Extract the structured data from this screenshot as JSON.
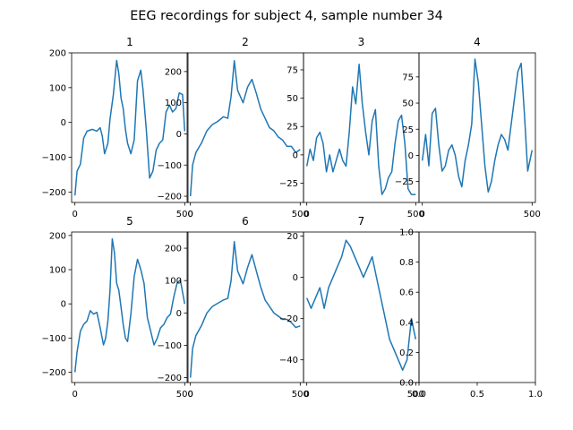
{
  "figure": {
    "title": "EEG recordings for subject 4, sample number 34"
  },
  "chart_data": [
    {
      "type": "line",
      "title": "1",
      "xlim": [
        -15,
        515
      ],
      "ylim": [
        -230,
        200
      ],
      "xticks": [
        0,
        500
      ],
      "yticks": [
        -200,
        -100,
        0,
        100,
        200
      ],
      "series": [
        {
          "x": [
            0,
            10,
            25,
            40,
            55,
            80,
            100,
            115,
            125,
            135,
            150,
            160,
            175,
            190,
            200,
            210,
            220,
            230,
            240,
            255,
            270,
            285,
            300,
            310,
            325,
            340,
            355,
            370,
            385,
            400,
            415,
            430,
            445,
            460,
            475,
            490,
            500
          ],
          "y": [
            -210,
            -140,
            -120,
            -45,
            -25,
            -20,
            -25,
            -15,
            -40,
            -90,
            -60,
            10,
            80,
            178,
            140,
            70,
            40,
            -20,
            -60,
            -90,
            -50,
            120,
            150,
            95,
            -20,
            -160,
            -140,
            -80,
            -60,
            -50,
            30,
            50,
            30,
            40,
            85,
            80,
            -25
          ]
        }
      ]
    },
    {
      "type": "line",
      "title": "2",
      "xlim": [
        -15,
        515
      ],
      "ylim": [
        -220,
        260
      ],
      "xticks": [
        0,
        500
      ],
      "yticks": [
        -200,
        -100,
        0,
        100,
        200
      ],
      "series": [
        {
          "x": [
            0,
            10,
            25,
            50,
            75,
            100,
            125,
            150,
            170,
            185,
            200,
            215,
            240,
            260,
            280,
            300,
            320,
            340,
            360,
            380,
            400,
            420,
            440,
            460,
            480,
            500
          ],
          "y": [
            -200,
            -100,
            -60,
            -30,
            10,
            30,
            40,
            55,
            50,
            120,
            235,
            140,
            100,
            150,
            175,
            130,
            80,
            50,
            20,
            10,
            -10,
            -20,
            -40,
            -40,
            -60,
            -50
          ]
        }
      ]
    },
    {
      "type": "line",
      "title": "3",
      "xlim": [
        -15,
        515
      ],
      "ylim": [
        -42,
        90
      ],
      "xticks": [
        0,
        500
      ],
      "yticks": [
        -25,
        0,
        25,
        50,
        75
      ],
      "series": [
        {
          "x": [
            0,
            15,
            30,
            45,
            60,
            75,
            90,
            105,
            120,
            135,
            150,
            165,
            180,
            195,
            210,
            225,
            240,
            255,
            270,
            285,
            300,
            315,
            330,
            345,
            360,
            375,
            390,
            405,
            420,
            435,
            450,
            465,
            480,
            500
          ],
          "y": [
            -10,
            5,
            -5,
            15,
            20,
            10,
            -15,
            0,
            -15,
            -5,
            5,
            -5,
            -10,
            20,
            60,
            45,
            80,
            45,
            20,
            0,
            30,
            40,
            -10,
            -35,
            -30,
            -20,
            -15,
            10,
            30,
            35,
            10,
            -30,
            -35,
            -35
          ]
        }
      ]
    },
    {
      "type": "line",
      "title": "4",
      "xlim": [
        -15,
        515
      ],
      "ylim": [
        -45,
        98
      ],
      "xticks": [
        0,
        500
      ],
      "yticks": [
        -25,
        0,
        25,
        50,
        75
      ],
      "series": [
        {
          "x": [
            0,
            15,
            30,
            45,
            60,
            75,
            90,
            105,
            120,
            135,
            150,
            165,
            180,
            195,
            210,
            225,
            240,
            255,
            270,
            285,
            300,
            315,
            330,
            345,
            360,
            375,
            390,
            405,
            420,
            435,
            450,
            465,
            480,
            500
          ],
          "y": [
            -5,
            20,
            -10,
            40,
            45,
            10,
            -15,
            -10,
            5,
            10,
            0,
            -20,
            -30,
            -5,
            10,
            30,
            92,
            70,
            30,
            -10,
            -35,
            -25,
            -5,
            10,
            20,
            15,
            5,
            30,
            55,
            80,
            88,
            40,
            -15,
            5
          ]
        }
      ]
    },
    {
      "type": "line",
      "title": "5",
      "xlim": [
        -15,
        515
      ],
      "ylim": [
        -230,
        210
      ],
      "xticks": [
        0,
        500
      ],
      "yticks": [
        -200,
        -100,
        0,
        100,
        200
      ],
      "series": [
        {
          "x": [
            0,
            10,
            25,
            40,
            55,
            70,
            85,
            100,
            115,
            130,
            140,
            150,
            160,
            170,
            180,
            190,
            200,
            210,
            220,
            230,
            240,
            255,
            270,
            285,
            300,
            315,
            330,
            345,
            360,
            375,
            390,
            405,
            420,
            435,
            450,
            465,
            480,
            500
          ],
          "y": [
            -200,
            -140,
            -80,
            -60,
            -50,
            -20,
            -30,
            -25,
            -70,
            -120,
            -100,
            -50,
            40,
            190,
            150,
            60,
            40,
            -10,
            -60,
            -100,
            -110,
            -30,
            80,
            130,
            100,
            60,
            -40,
            -80,
            -120,
            -100,
            -70,
            -60,
            -40,
            -30,
            20,
            60,
            70,
            0
          ]
        }
      ]
    },
    {
      "type": "line",
      "title": "6",
      "xlim": [
        -15,
        515
      ],
      "ylim": [
        -215,
        250
      ],
      "xticks": [
        0,
        500
      ],
      "yticks": [
        -200,
        -100,
        0,
        100,
        200
      ],
      "series": [
        {
          "x": [
            0,
            10,
            25,
            50,
            75,
            100,
            125,
            150,
            170,
            185,
            200,
            215,
            240,
            260,
            280,
            300,
            320,
            340,
            360,
            380,
            400,
            420,
            440,
            460,
            480,
            500
          ],
          "y": [
            -200,
            -110,
            -70,
            -40,
            0,
            20,
            30,
            40,
            45,
            100,
            220,
            130,
            90,
            140,
            180,
            130,
            80,
            40,
            20,
            0,
            -10,
            -20,
            -20,
            -30,
            -45,
            -40
          ]
        }
      ]
    },
    {
      "type": "line",
      "title": "7",
      "xlim": [
        -15,
        515
      ],
      "ylim": [
        -51,
        22
      ],
      "xticks": [
        0,
        500
      ],
      "yticks": [
        -40,
        -20,
        0,
        20
      ],
      "series": [
        {
          "x": [
            0,
            20,
            40,
            60,
            80,
            100,
            120,
            140,
            160,
            180,
            200,
            220,
            240,
            260,
            280,
            300,
            320,
            340,
            360,
            380,
            400,
            420,
            440,
            460,
            480,
            500
          ],
          "y": [
            -10,
            -15,
            -10,
            -5,
            -15,
            -5,
            0,
            5,
            10,
            18,
            15,
            10,
            5,
            0,
            5,
            10,
            0,
            -10,
            -20,
            -30,
            -35,
            -40,
            -45,
            -40,
            -20,
            -30
          ]
        }
      ]
    },
    {
      "type": "line",
      "title": "",
      "xlim": [
        0,
        1
      ],
      "ylim": [
        0,
        1
      ],
      "xticks": [
        0.0,
        0.5,
        1.0
      ],
      "yticks": [
        0.0,
        0.2,
        0.4,
        0.6,
        0.8,
        1.0
      ],
      "tick_format": "fixed1",
      "series": []
    }
  ],
  "style": {
    "line_color": "#1f77b4"
  }
}
